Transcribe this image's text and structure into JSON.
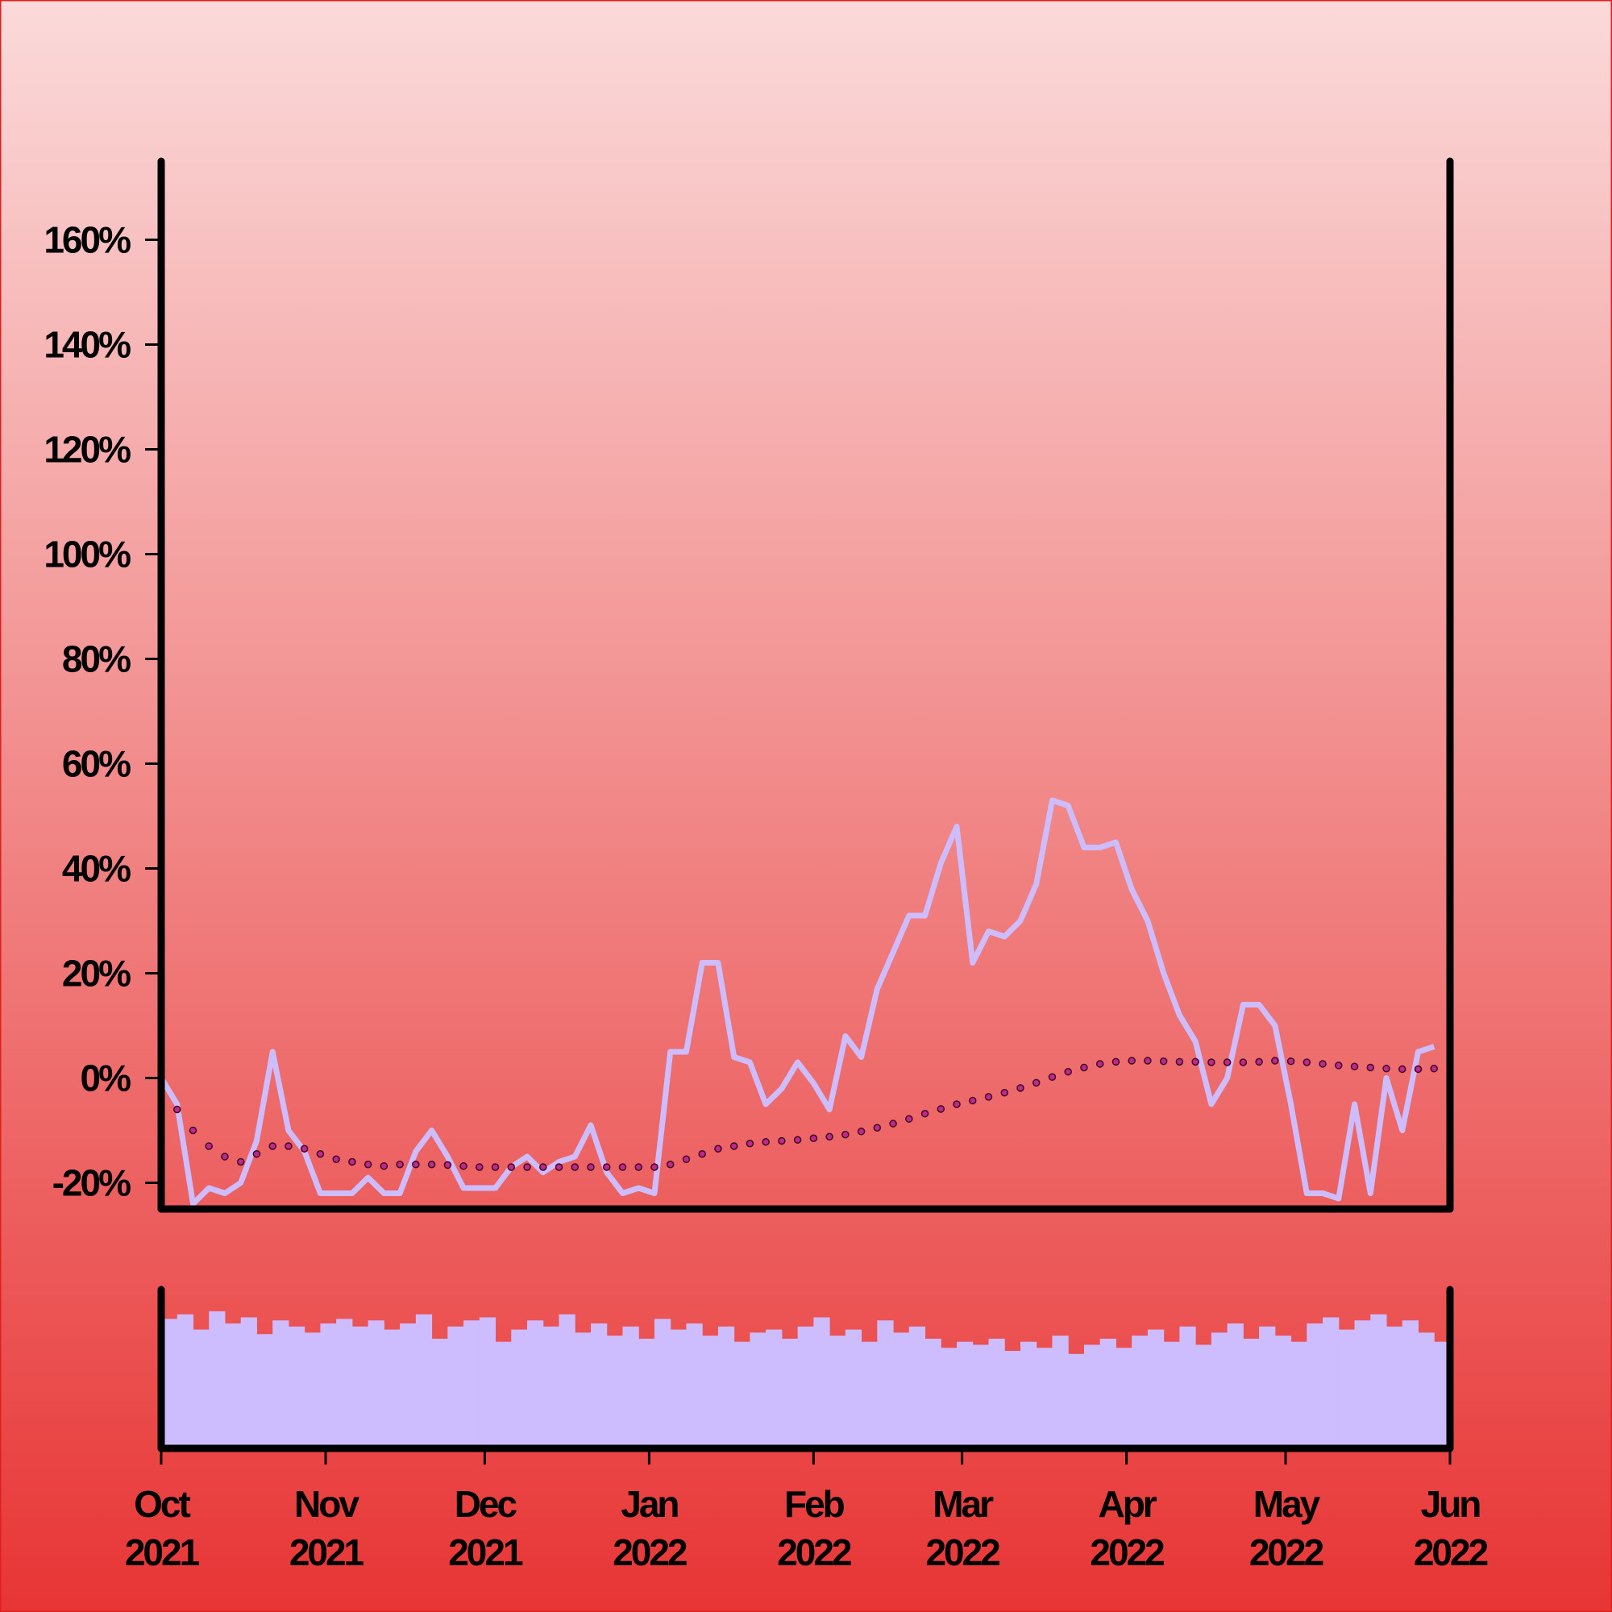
{
  "chart_data": {
    "type": "line",
    "x": [
      "2021-10-01",
      "2021-10-04",
      "2021-10-07",
      "2021-10-10",
      "2021-10-13",
      "2021-10-16",
      "2021-10-19",
      "2021-10-22",
      "2021-10-25",
      "2021-10-28",
      "2021-10-31",
      "2021-11-03",
      "2021-11-06",
      "2021-11-09",
      "2021-11-12",
      "2021-11-15",
      "2021-11-18",
      "2021-11-21",
      "2021-11-24",
      "2021-11-27",
      "2021-11-30",
      "2021-12-03",
      "2021-12-06",
      "2021-12-09",
      "2021-12-12",
      "2021-12-15",
      "2021-12-18",
      "2021-12-21",
      "2021-12-24",
      "2021-12-27",
      "2021-12-30",
      "2022-01-02",
      "2022-01-05",
      "2022-01-08",
      "2022-01-11",
      "2022-01-14",
      "2022-01-17",
      "2022-01-20",
      "2022-01-23",
      "2022-01-26",
      "2022-01-29",
      "2022-02-01",
      "2022-02-04",
      "2022-02-07",
      "2022-02-10",
      "2022-02-13",
      "2022-02-16",
      "2022-02-19",
      "2022-02-22",
      "2022-02-25",
      "2022-02-28",
      "2022-03-03",
      "2022-03-06",
      "2022-03-09",
      "2022-03-12",
      "2022-03-15",
      "2022-03-18",
      "2022-03-21",
      "2022-03-24",
      "2022-03-27",
      "2022-03-30",
      "2022-04-02",
      "2022-04-05",
      "2022-04-08",
      "2022-04-11",
      "2022-04-14",
      "2022-04-17",
      "2022-04-20",
      "2022-04-23",
      "2022-04-26",
      "2022-04-29",
      "2022-05-02",
      "2022-05-05",
      "2022-05-08",
      "2022-05-11",
      "2022-05-14",
      "2022-05-17",
      "2022-05-20",
      "2022-05-23",
      "2022-05-26",
      "2022-05-29"
    ],
    "series": [
      {
        "color": "#cdbdff",
        "values": [
          0,
          -5,
          -24,
          -21,
          -22,
          -20,
          -12,
          5,
          -10,
          -14,
          -22,
          -22,
          -22,
          -19,
          -22,
          -22,
          -14,
          -10,
          -15,
          -21,
          -21,
          -21,
          -17,
          -15,
          -18,
          -16,
          -15,
          -9,
          -18,
          -22,
          -21,
          -22,
          5,
          5,
          22,
          22,
          4,
          3,
          -5,
          -2,
          3,
          -1,
          -6,
          8,
          4,
          17,
          24,
          31,
          31,
          41,
          48,
          22,
          28,
          27,
          30,
          37,
          53,
          52,
          44,
          44,
          45,
          36,
          30,
          20,
          12,
          7,
          -5,
          0,
          14,
          14,
          10,
          -5,
          -22,
          -22,
          -23,
          -5,
          -22,
          0,
          -10,
          5,
          6
        ]
      },
      {
        "color": "#c0288f",
        "values": [
          0,
          -6,
          -10,
          -13,
          -15,
          -16,
          -14.5,
          -13,
          -13,
          -13.5,
          -14.5,
          -15.5,
          -16,
          -16.5,
          -16.8,
          -16.5,
          -16.5,
          -16.5,
          -16.6,
          -16.8,
          -17,
          -17,
          -17,
          -17,
          -17,
          -17,
          -17,
          -17,
          -17,
          -17,
          -17,
          -17,
          -16.5,
          -15.5,
          -14.5,
          -13.5,
          -13,
          -12.5,
          -12.2,
          -12,
          -11.8,
          -11.5,
          -11.2,
          -10.8,
          -10.2,
          -9.5,
          -8.7,
          -7.8,
          -6.8,
          -5.9,
          -5,
          -4.3,
          -3.6,
          -2.8,
          -1.9,
          -0.9,
          0.2,
          1.2,
          2,
          2.7,
          3.1,
          3.3,
          3.3,
          3.2,
          3.1,
          3.1,
          3,
          3,
          3,
          3.1,
          3.3,
          3.2,
          3,
          2.7,
          2.4,
          2.2,
          2,
          1.8,
          1.7,
          1.7,
          1.8
        ]
      }
    ],
    "volume": {
      "color": "#cdbdff",
      "ylim": [
        0,
        100
      ],
      "values": [
        85,
        88,
        78,
        90,
        82,
        86,
        75,
        84,
        80,
        76,
        82,
        85,
        80,
        84,
        78,
        82,
        88,
        72,
        80,
        84,
        86,
        70,
        78,
        84,
        80,
        88,
        76,
        82,
        74,
        80,
        72,
        85,
        78,
        82,
        74,
        80,
        70,
        76,
        78,
        72,
        80,
        86,
        74,
        78,
        70,
        84,
        76,
        80,
        72,
        66,
        70,
        68,
        72,
        64,
        70,
        66,
        74,
        62,
        68,
        72,
        66,
        74,
        78,
        70,
        80,
        68,
        76,
        82,
        72,
        80,
        74,
        70,
        82,
        86,
        78,
        84,
        88,
        80,
        84,
        76,
        70
      ]
    },
    "xlim": [
      "2021-10-01",
      "2022-06-01"
    ],
    "xticks": [
      {
        "value": "2021-10-01",
        "label": "Oct 2021"
      },
      {
        "value": "2021-11-01",
        "label": "Nov 2021"
      },
      {
        "value": "2021-12-01",
        "label": "Dec 2021"
      },
      {
        "value": "2022-01-01",
        "label": "Jan 2022"
      },
      {
        "value": "2022-02-01",
        "label": "Feb 2022"
      },
      {
        "value": "2022-03-01",
        "label": "Mar 2022"
      },
      {
        "value": "2022-04-01",
        "label": "Apr 2022"
      },
      {
        "value": "2022-05-01",
        "label": "May 2022"
      },
      {
        "value": "2022-06-01",
        "label": "Jun 2022"
      }
    ],
    "ylim": [
      -25,
      175
    ],
    "yticks": [
      {
        "value": -20,
        "label": "-20%"
      },
      {
        "value": 0,
        "label": "0%"
      },
      {
        "value": 20,
        "label": "20%"
      },
      {
        "value": 40,
        "label": "40%"
      },
      {
        "value": 60,
        "label": "60%"
      },
      {
        "value": 80,
        "label": "80%"
      },
      {
        "value": 100,
        "label": "100%"
      },
      {
        "value": 120,
        "label": "120%"
      },
      {
        "value": 140,
        "label": "140%"
      },
      {
        "value": 160,
        "label": "160%"
      }
    ]
  }
}
